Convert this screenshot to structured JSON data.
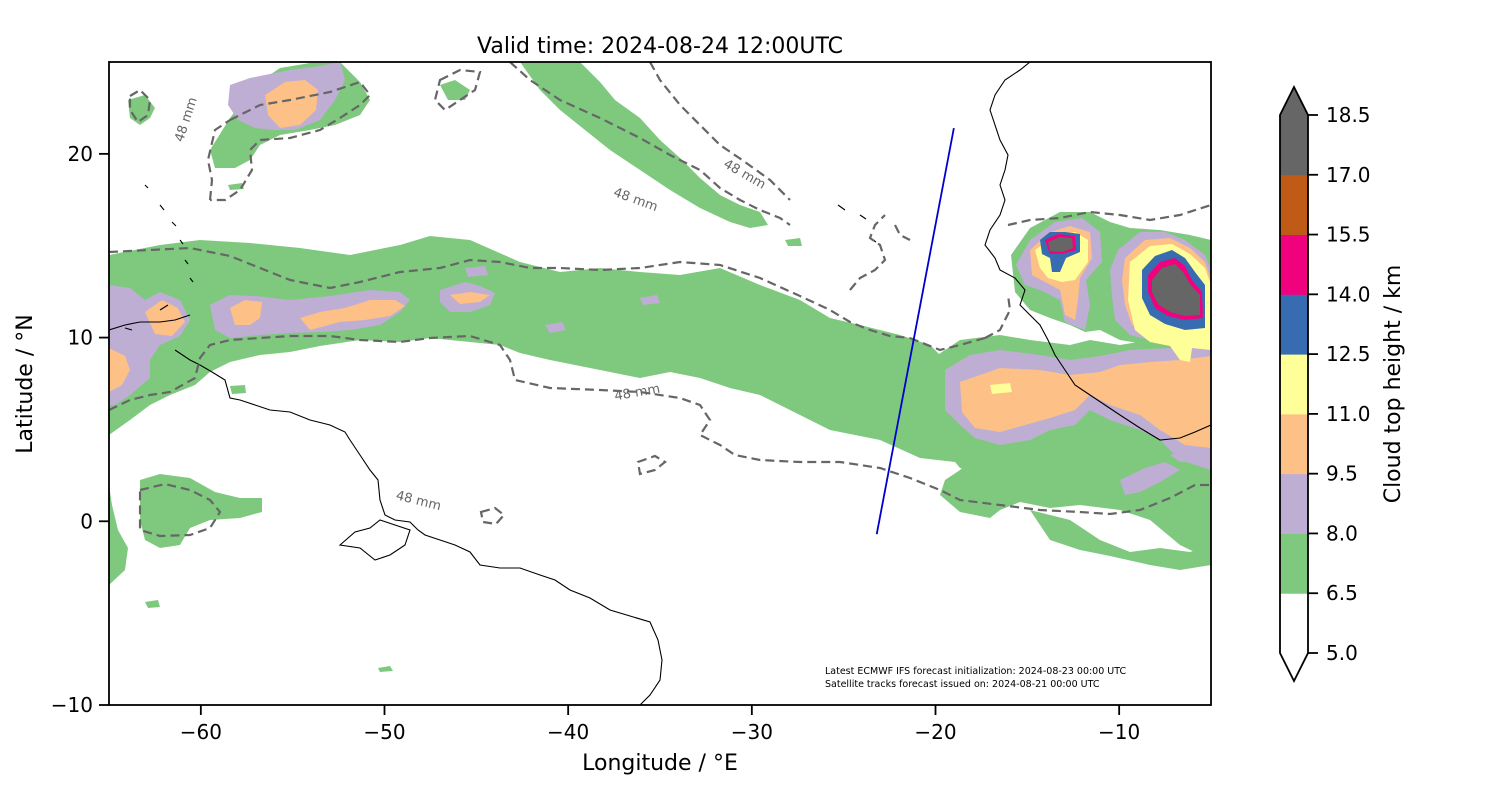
{
  "figure": {
    "title": "Valid time: 2024-08-24 12:00UTC",
    "xlabel": "Longitude / °E",
    "ylabel": "Latitude / °N",
    "notes": [
      "Latest ECMWF IFS forecast initialization: 2024-08-23 00:00 UTC",
      "Satellite tracks forecast issued on: 2024-08-21 00:00 UTC"
    ],
    "colorbar_label": "Cloud top height / km"
  },
  "map": {
    "lon_range": [
      -65,
      -5
    ],
    "lat_range": [
      -10,
      25
    ],
    "x_ticks": [
      {
        "v": -60,
        "t": "−60"
      },
      {
        "v": -50,
        "t": "−50"
      },
      {
        "v": -40,
        "t": "−40"
      },
      {
        "v": -30,
        "t": "−30"
      },
      {
        "v": -20,
        "t": "−20"
      },
      {
        "v": -10,
        "t": "−10"
      }
    ],
    "y_ticks": [
      {
        "v": 20,
        "t": "20"
      },
      {
        "v": 10,
        "t": "10"
      },
      {
        "v": 0,
        "t": "0"
      },
      {
        "v": -10,
        "t": "−10"
      }
    ],
    "contour_label": "48 mm",
    "satellite_track": [
      [
        -19.0,
        21.4
      ],
      [
        -23.2,
        -0.7
      ]
    ],
    "contour_label_positions": [
      {
        "lon": -60.6,
        "lat": 21.8,
        "rot": -72
      },
      {
        "lon": -48.2,
        "lat": 0.9,
        "rot": 14
      },
      {
        "lon": -36.2,
        "lat": 6.8,
        "rot": -10
      },
      {
        "lon": -36.4,
        "lat": 17.3,
        "rot": 20
      },
      {
        "lon": -30.5,
        "lat": 18.7,
        "rot": 30
      }
    ]
  },
  "colorbar": {
    "levels": [
      "5.0",
      "6.5",
      "8.0",
      "9.5",
      "11.0",
      "12.5",
      "14.0",
      "15.5",
      "17.0",
      "18.5"
    ],
    "colors": [
      "#ffffff",
      "#7fc97f",
      "#beaed4",
      "#fdc086",
      "#ffff99",
      "#386cb0",
      "#f0027f",
      "#bf5b17",
      "#666666"
    ],
    "extend_low_color": "#ffffff",
    "extend_high_color": "#666666"
  }
}
